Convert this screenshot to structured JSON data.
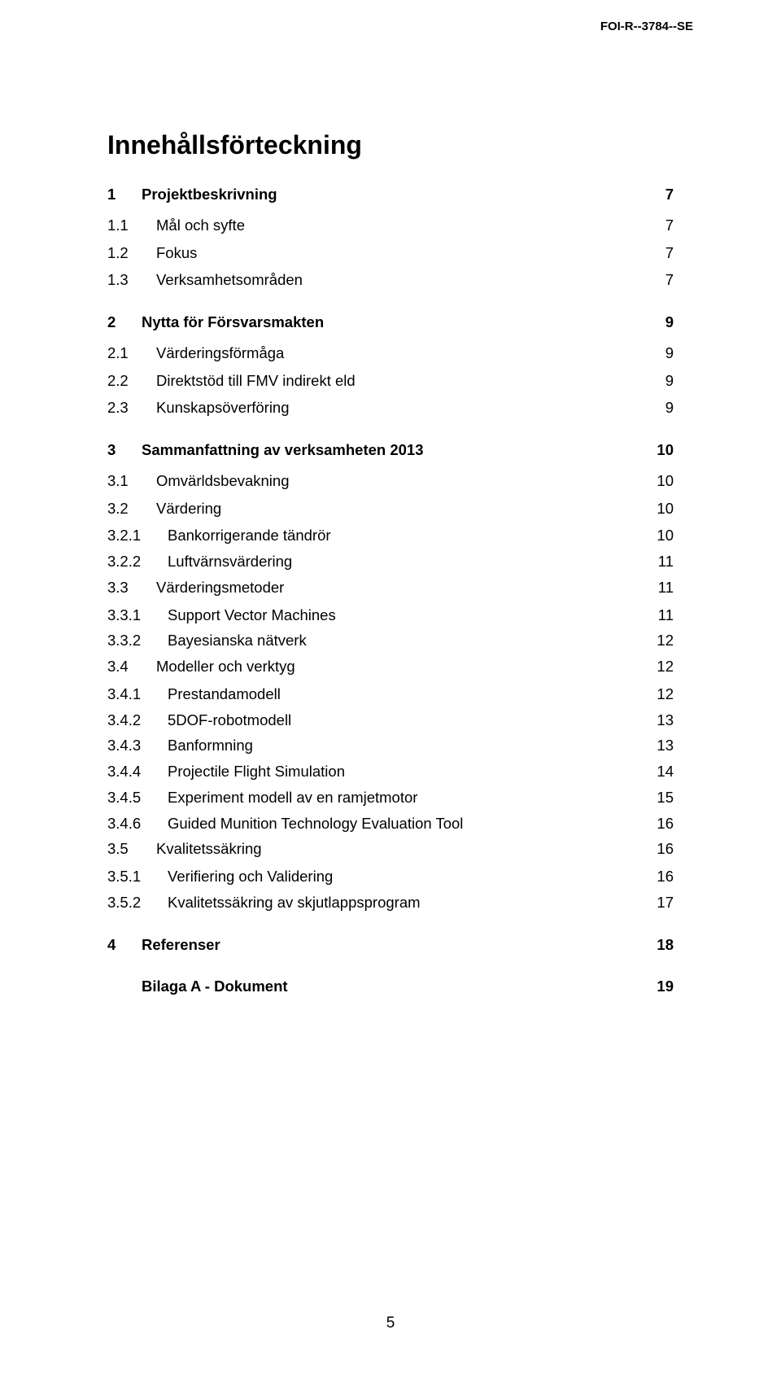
{
  "header": {
    "doc_id": "FOI-R--3784--SE"
  },
  "title": "Innehållsförteckning",
  "toc": [
    {
      "level": "section",
      "num": "1",
      "label": "Projektbeskrivning",
      "page": "7",
      "dots": false
    },
    {
      "level": "sub",
      "num": "1.1",
      "label": "Mål och syfte",
      "page": "7",
      "dots": true
    },
    {
      "level": "sub",
      "num": "1.2",
      "label": "Fokus",
      "page": "7",
      "dots": true
    },
    {
      "level": "sub",
      "num": "1.3",
      "label": "Verksamhetsområden",
      "page": "7",
      "dots": true
    },
    {
      "level": "section",
      "num": "2",
      "label": "Nytta för Försvarsmakten",
      "page": "9",
      "dots": false
    },
    {
      "level": "sub",
      "num": "2.1",
      "label": "Värderingsförmåga",
      "page": "9",
      "dots": true
    },
    {
      "level": "sub",
      "num": "2.2",
      "label": "Direktstöd till FMV indirekt eld",
      "page": "9",
      "dots": true
    },
    {
      "level": "sub",
      "num": "2.3",
      "label": "Kunskapsöverföring",
      "page": "9",
      "dots": true
    },
    {
      "level": "section",
      "num": "3",
      "label": "Sammanfattning av verksamheten 2013",
      "page": "10",
      "dots": false
    },
    {
      "level": "sub",
      "num": "3.1",
      "label": "Omvärldsbevakning",
      "page": "10",
      "dots": true
    },
    {
      "level": "sub",
      "num": "3.2",
      "label": "Värdering",
      "page": "10",
      "dots": true
    },
    {
      "level": "subsub",
      "num": "3.2.1",
      "label": "Bankorrigerande tändrör",
      "page": "10",
      "dots": true
    },
    {
      "level": "subsub",
      "num": "3.2.2",
      "label": "Luftvärnsvärdering",
      "page": "11",
      "dots": true
    },
    {
      "level": "sub",
      "num": "3.3",
      "label": "Värderingsmetoder",
      "page": "11",
      "dots": true
    },
    {
      "level": "subsub",
      "num": "3.3.1",
      "label": "Support Vector Machines",
      "page": "11",
      "dots": true
    },
    {
      "level": "subsub",
      "num": "3.3.2",
      "label": "Bayesianska nätverk",
      "page": "12",
      "dots": true
    },
    {
      "level": "sub",
      "num": "3.4",
      "label": "Modeller och verktyg",
      "page": "12",
      "dots": true
    },
    {
      "level": "subsub",
      "num": "3.4.1",
      "label": "Prestandamodell",
      "page": "12",
      "dots": true
    },
    {
      "level": "subsub",
      "num": "3.4.2",
      "label": "5DOF-robotmodell",
      "page": "13",
      "dots": true
    },
    {
      "level": "subsub",
      "num": "3.4.3",
      "label": "Banformning",
      "page": "13",
      "dots": true
    },
    {
      "level": "subsub",
      "num": "3.4.4",
      "label": "Projectile Flight Simulation",
      "page": "14",
      "dots": true
    },
    {
      "level": "subsub",
      "num": "3.4.5",
      "label": "Experiment modell av en ramjetmotor",
      "page": "15",
      "dots": true
    },
    {
      "level": "subsub",
      "num": "3.4.6",
      "label": "Guided Munition Technology Evaluation Tool",
      "page": "16",
      "dots": true
    },
    {
      "level": "sub",
      "num": "3.5",
      "label": "Kvalitetssäkring",
      "page": "16",
      "dots": true
    },
    {
      "level": "subsub",
      "num": "3.5.1",
      "label": "Verifiering och Validering",
      "page": "16",
      "dots": true
    },
    {
      "level": "subsub",
      "num": "3.5.2",
      "label": "Kvalitetssäkring av skjutlappsprogram",
      "page": "17",
      "dots": true
    },
    {
      "level": "section",
      "num": "4",
      "label": "Referenser",
      "page": "18",
      "dots": false
    },
    {
      "level": "section",
      "num": "",
      "label": "Bilaga A - Dokument",
      "page": "19",
      "dots": false
    }
  ],
  "footer": {
    "page_number": "5"
  }
}
